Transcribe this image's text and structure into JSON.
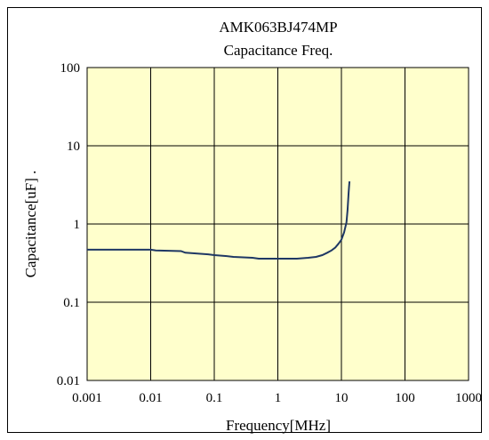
{
  "colors": {
    "plot_bg": "#FFFFCC",
    "grid": "#000000",
    "line": "#1F3864"
  },
  "chart_data": {
    "type": "line",
    "title": "AMK063BJ474MP",
    "subtitle": "Capacitance Freq.",
    "xlabel": "Frequency[MHz]",
    "ylabel": "Capacitance[uF] .",
    "xscale": "log",
    "yscale": "log",
    "xlim": [
      0.001,
      1000
    ],
    "ylim": [
      0.01,
      100
    ],
    "grid": true,
    "x_ticks": [
      "0.001",
      "0.01",
      "0.1",
      "1",
      "10",
      "100",
      "1000"
    ],
    "y_ticks": [
      "0.01",
      "0.1",
      "1",
      "10",
      "100"
    ],
    "x": [
      0.001,
      0.01,
      0.012,
      0.03,
      0.035,
      0.08,
      0.1,
      0.15,
      0.2,
      0.4,
      0.5,
      0.8,
      1,
      2,
      3,
      4,
      5,
      6,
      7,
      8,
      9,
      10,
      11,
      12,
      12.5,
      13,
      13.2,
      13.4
    ],
    "values": [
      0.47,
      0.47,
      0.46,
      0.45,
      0.43,
      0.41,
      0.4,
      0.39,
      0.38,
      0.37,
      0.36,
      0.36,
      0.36,
      0.36,
      0.37,
      0.38,
      0.4,
      0.43,
      0.46,
      0.5,
      0.56,
      0.63,
      0.78,
      1.05,
      1.5,
      2.5,
      3.0,
      3.5
    ]
  }
}
